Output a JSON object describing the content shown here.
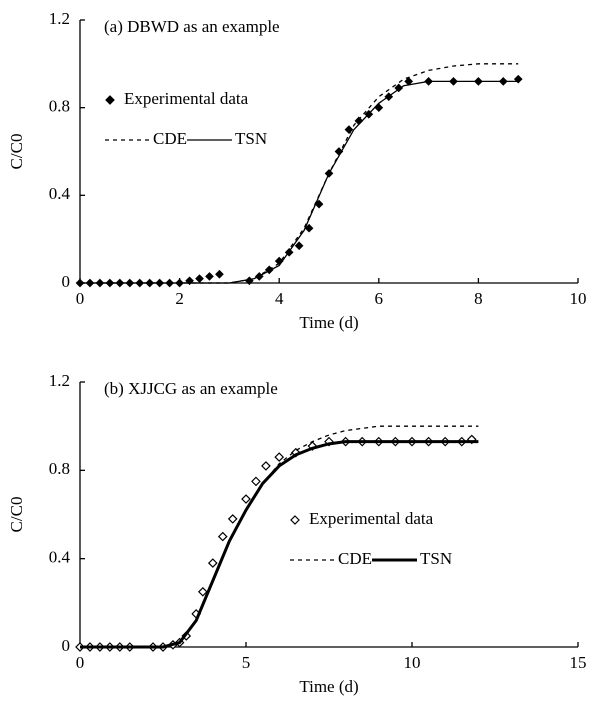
{
  "chart_data": [
    {
      "type": "line",
      "title": "(a) DBWD as an example",
      "xlabel": "Time (d)",
      "ylabel": "C/C0",
      "xlim": [
        0,
        10
      ],
      "xticks": [
        0,
        2,
        4,
        6,
        8,
        10
      ],
      "ylim": [
        0,
        1.2
      ],
      "yticks": [
        0,
        0.4,
        0.8,
        1.2
      ],
      "grid": false,
      "legend": "upper left",
      "series": [
        {
          "name": "Experimental data",
          "color": "#000000",
          "marker": "diamond",
          "filled": true,
          "x": [
            0,
            0.2,
            0.4,
            0.6,
            0.8,
            1.0,
            1.2,
            1.4,
            1.6,
            1.8,
            2.0,
            2.2,
            2.4,
            2.6,
            2.8,
            3.4,
            3.6,
            3.8,
            4.0,
            4.2,
            4.4,
            4.6,
            4.8,
            5.0,
            5.2,
            5.4,
            5.6,
            5.8,
            6.0,
            6.2,
            6.4,
            6.6,
            7.0,
            7.5,
            8.0,
            8.5,
            8.8
          ],
          "values": [
            0,
            0,
            0,
            0,
            0,
            0,
            0,
            0,
            0,
            0,
            0,
            0.01,
            0.02,
            0.03,
            0.04,
            0.01,
            0.03,
            0.06,
            0.1,
            0.14,
            0.17,
            0.25,
            0.36,
            0.5,
            0.6,
            0.7,
            0.74,
            0.77,
            0.8,
            0.85,
            0.89,
            0.92,
            0.92,
            0.92,
            0.92,
            0.92,
            0.93
          ]
        },
        {
          "name": "CDE",
          "color": "#000000",
          "dash": "dashed",
          "linewidth": 1.3,
          "x": [
            0,
            3,
            3.5,
            4,
            4.5,
            5,
            5.5,
            6,
            6.5,
            7,
            7.5,
            8,
            8.8
          ],
          "values": [
            0,
            0,
            0.02,
            0.09,
            0.25,
            0.5,
            0.72,
            0.85,
            0.93,
            0.97,
            0.99,
            1,
            1
          ]
        },
        {
          "name": "TSN",
          "color": "#000000",
          "dash": "solid",
          "linewidth": 1.3,
          "x": [
            0,
            3,
            3.5,
            4,
            4.5,
            5,
            5.5,
            6,
            6.5,
            7,
            7.5,
            8,
            8.8
          ],
          "values": [
            0,
            0,
            0.02,
            0.08,
            0.24,
            0.5,
            0.7,
            0.82,
            0.9,
            0.92,
            0.92,
            0.92,
            0.92
          ]
        }
      ]
    },
    {
      "type": "line",
      "title": "(b) XJJCG as an example",
      "xlabel": "Time (d)",
      "ylabel": "C/C0",
      "xlim": [
        0,
        15
      ],
      "xticks": [
        0,
        5,
        10,
        15
      ],
      "ylim": [
        0,
        1.2
      ],
      "yticks": [
        0,
        0.4,
        0.8,
        1.2
      ],
      "grid": false,
      "legend": "center right",
      "series": [
        {
          "name": "Experimental data",
          "color": "#000000",
          "marker": "diamond",
          "filled": false,
          "x": [
            0,
            0.3,
            0.6,
            0.9,
            1.2,
            1.5,
            2.2,
            2.5,
            2.8,
            3.0,
            3.2,
            3.5,
            3.7,
            4.0,
            4.3,
            4.6,
            5.0,
            5.3,
            5.6,
            6.0,
            6.5,
            7.0,
            7.5,
            8.0,
            8.5,
            9.0,
            9.5,
            10.0,
            10.5,
            11.0,
            11.5,
            11.8
          ],
          "values": [
            0,
            0,
            0,
            0,
            0,
            0,
            0,
            0,
            0.01,
            0.02,
            0.05,
            0.15,
            0.25,
            0.38,
            0.5,
            0.58,
            0.67,
            0.75,
            0.82,
            0.86,
            0.88,
            0.91,
            0.93,
            0.93,
            0.93,
            0.93,
            0.93,
            0.93,
            0.93,
            0.93,
            0.93,
            0.94
          ]
        },
        {
          "name": "CDE",
          "color": "#000000",
          "dash": "dashed",
          "linewidth": 1.3,
          "x": [
            0,
            2.5,
            3,
            3.5,
            4,
            4.5,
            5,
            5.5,
            6,
            6.5,
            7,
            7.5,
            8,
            9,
            10,
            12
          ],
          "values": [
            0,
            0,
            0.02,
            0.12,
            0.3,
            0.48,
            0.62,
            0.74,
            0.83,
            0.89,
            0.93,
            0.96,
            0.98,
            1,
            1,
            1
          ]
        },
        {
          "name": "TSN",
          "color": "#000000",
          "dash": "solid",
          "linewidth": 3,
          "x": [
            0,
            2.5,
            3,
            3.5,
            4,
            4.5,
            5,
            5.5,
            6,
            6.5,
            7,
            7.5,
            8,
            9,
            10,
            12
          ],
          "values": [
            0,
            0,
            0.02,
            0.12,
            0.3,
            0.48,
            0.62,
            0.74,
            0.82,
            0.87,
            0.9,
            0.92,
            0.93,
            0.93,
            0.93,
            0.93
          ]
        }
      ]
    }
  ]
}
